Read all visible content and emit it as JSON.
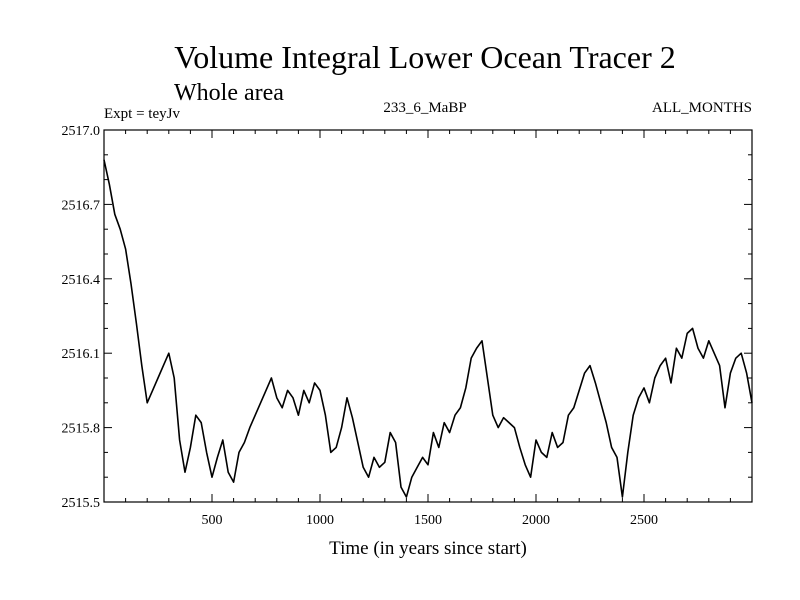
{
  "chart_data": {
    "type": "line",
    "title": "Volume Integral Lower Ocean Tracer 2",
    "subtitle": "Whole area",
    "header_left": "Expt = teyJv",
    "header_center": "233_6_MaBP",
    "header_right": "ALL_MONTHS",
    "xlabel": "Time (in years since start)",
    "ylabel": "",
    "xlim": [
      0,
      3000
    ],
    "ylim": [
      2515.5,
      2517.0
    ],
    "x_ticks": [
      500,
      1000,
      1500,
      2000,
      2500
    ],
    "x_tick_labels": [
      "500",
      "1000",
      "1500",
      "2000",
      "2500"
    ],
    "y_ticks": [
      2515.5,
      2515.8,
      2516.1,
      2516.4,
      2516.7,
      2517.0
    ],
    "y_tick_labels": [
      "2515.5",
      "2515.8",
      "2516.1",
      "2516.4",
      "2516.7",
      "2517.0"
    ],
    "grid": false,
    "series": [
      {
        "name": "Lower Ocean Tracer 2",
        "color": "#000000",
        "x": [
          0,
          25,
          50,
          75,
          100,
          125,
          150,
          175,
          200,
          225,
          250,
          275,
          300,
          325,
          350,
          375,
          400,
          425,
          450,
          475,
          500,
          525,
          550,
          575,
          600,
          625,
          650,
          675,
          700,
          725,
          750,
          775,
          800,
          825,
          850,
          875,
          900,
          925,
          950,
          975,
          1000,
          1025,
          1050,
          1075,
          1100,
          1125,
          1150,
          1175,
          1200,
          1225,
          1250,
          1275,
          1300,
          1325,
          1350,
          1375,
          1400,
          1425,
          1450,
          1475,
          1500,
          1525,
          1550,
          1575,
          1600,
          1625,
          1650,
          1675,
          1700,
          1725,
          1750,
          1775,
          1800,
          1825,
          1850,
          1875,
          1900,
          1925,
          1950,
          1975,
          2000,
          2025,
          2050,
          2075,
          2100,
          2125,
          2150,
          2175,
          2200,
          2225,
          2250,
          2275,
          2300,
          2325,
          2350,
          2375,
          2400,
          2425,
          2450,
          2475,
          2500,
          2525,
          2550,
          2575,
          2600,
          2625,
          2650,
          2675,
          2700,
          2725,
          2750,
          2775,
          2800,
          2825,
          2850,
          2875,
          2900,
          2925,
          2950,
          2975,
          3000
        ],
        "values": [
          2516.88,
          2516.78,
          2516.66,
          2516.6,
          2516.52,
          2516.38,
          2516.22,
          2516.05,
          2515.9,
          2515.95,
          2516.0,
          2516.05,
          2516.1,
          2516.0,
          2515.75,
          2515.62,
          2515.72,
          2515.85,
          2515.82,
          2515.7,
          2515.6,
          2515.68,
          2515.75,
          2515.62,
          2515.58,
          2515.7,
          2515.74,
          2515.8,
          2515.85,
          2515.9,
          2515.95,
          2516.0,
          2515.92,
          2515.88,
          2515.95,
          2515.92,
          2515.85,
          2515.95,
          2515.9,
          2515.98,
          2515.95,
          2515.85,
          2515.7,
          2515.72,
          2515.8,
          2515.92,
          2515.84,
          2515.74,
          2515.64,
          2515.6,
          2515.68,
          2515.64,
          2515.66,
          2515.78,
          2515.74,
          2515.56,
          2515.52,
          2515.6,
          2515.64,
          2515.68,
          2515.65,
          2515.78,
          2515.72,
          2515.82,
          2515.78,
          2515.85,
          2515.88,
          2515.96,
          2516.08,
          2516.12,
          2516.15,
          2516.0,
          2515.85,
          2515.8,
          2515.84,
          2515.82,
          2515.8,
          2515.72,
          2515.65,
          2515.6,
          2515.75,
          2515.7,
          2515.68,
          2515.78,
          2515.72,
          2515.74,
          2515.85,
          2515.88,
          2515.95,
          2516.02,
          2516.05,
          2515.98,
          2515.9,
          2515.82,
          2515.72,
          2515.68,
          2515.52,
          2515.7,
          2515.85,
          2515.92,
          2515.96,
          2515.9,
          2516.0,
          2516.05,
          2516.08,
          2515.98,
          2516.12,
          2516.08,
          2516.18,
          2516.2,
          2516.12,
          2516.08,
          2516.15,
          2516.1,
          2516.05,
          2515.88,
          2516.02,
          2516.08,
          2516.1,
          2516.02,
          2515.9
        ]
      }
    ]
  }
}
